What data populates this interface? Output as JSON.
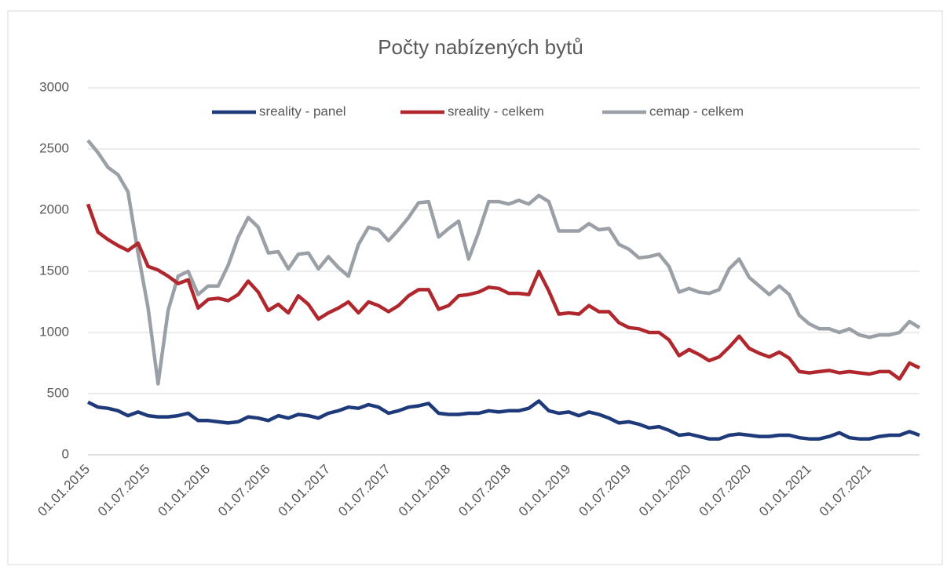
{
  "chart_data": {
    "type": "line",
    "title": "Počty nabízených bytů",
    "categories": [
      "01.01.2015",
      null,
      null,
      null,
      null,
      null,
      "01.07.2015",
      null,
      null,
      null,
      null,
      null,
      "01.01.2016",
      null,
      null,
      null,
      null,
      null,
      "01.07.2016",
      null,
      null,
      null,
      null,
      null,
      "01.01.2017",
      null,
      null,
      null,
      null,
      null,
      "01.07.2017",
      null,
      null,
      null,
      null,
      null,
      "01.01.2018",
      null,
      null,
      null,
      null,
      null,
      "01.07.2018",
      null,
      null,
      null,
      null,
      null,
      "01.01.2019",
      null,
      null,
      null,
      null,
      null,
      "01.07.2019",
      null,
      null,
      null,
      null,
      null,
      "01.01.2020",
      null,
      null,
      null,
      null,
      null,
      "01.07.2020",
      null,
      null,
      null,
      null,
      null,
      "01.01.2021",
      null,
      null,
      null,
      null,
      null,
      "01.07.2021",
      null,
      null,
      null,
      null,
      null
    ],
    "series": [
      {
        "name": "sreality - panel",
        "color": "#1f3a7a",
        "values": [
          430,
          390,
          380,
          360,
          320,
          350,
          320,
          310,
          310,
          320,
          340,
          280,
          280,
          270,
          260,
          270,
          310,
          300,
          280,
          320,
          300,
          330,
          320,
          300,
          340,
          360,
          390,
          380,
          410,
          390,
          340,
          360,
          390,
          400,
          420,
          340,
          330,
          330,
          340,
          340,
          360,
          350,
          360,
          360,
          380,
          440,
          360,
          340,
          350,
          320,
          350,
          330,
          300,
          260,
          270,
          250,
          220,
          230,
          200,
          160,
          170,
          150,
          130,
          130,
          160,
          170,
          160,
          150,
          150,
          160,
          160,
          140,
          130,
          130,
          150,
          180,
          140,
          130,
          130,
          150,
          160,
          160,
          190,
          160
        ]
      },
      {
        "name": "sreality - celkem",
        "color": "#b0282e",
        "values": [
          2050,
          1820,
          1760,
          1710,
          1670,
          1730,
          1540,
          1510,
          1460,
          1400,
          1430,
          1200,
          1270,
          1280,
          1260,
          1310,
          1420,
          1330,
          1180,
          1230,
          1160,
          1300,
          1230,
          1110,
          1160,
          1200,
          1250,
          1160,
          1250,
          1220,
          1170,
          1220,
          1300,
          1350,
          1350,
          1190,
          1220,
          1300,
          1310,
          1330,
          1370,
          1360,
          1320,
          1320,
          1310,
          1500,
          1340,
          1150,
          1160,
          1150,
          1220,
          1170,
          1170,
          1080,
          1040,
          1030,
          1000,
          1000,
          940,
          810,
          860,
          820,
          770,
          800,
          880,
          970,
          870,
          830,
          800,
          840,
          790,
          680,
          670,
          680,
          690,
          670,
          680,
          670,
          660,
          680,
          680,
          620,
          750,
          710
        ]
      },
      {
        "name": "cemap  - celkem",
        "color": "#9aa0a6",
        "values": [
          2570,
          2470,
          2350,
          2290,
          2150,
          1650,
          1200,
          580,
          1180,
          1460,
          1500,
          1310,
          1380,
          1380,
          1550,
          1780,
          1940,
          1860,
          1650,
          1660,
          1520,
          1640,
          1650,
          1520,
          1620,
          1530,
          1460,
          1720,
          1860,
          1840,
          1750,
          1840,
          1940,
          2060,
          2070,
          1780,
          1850,
          1910,
          1600,
          1820,
          2070,
          2070,
          2050,
          2080,
          2050,
          2120,
          2070,
          1830,
          1830,
          1830,
          1890,
          1840,
          1850,
          1720,
          1680,
          1610,
          1620,
          1640,
          1540,
          1330,
          1360,
          1330,
          1320,
          1350,
          1520,
          1600,
          1450,
          1380,
          1310,
          1380,
          1310,
          1140,
          1070,
          1030,
          1030,
          1000,
          1030,
          980,
          960,
          980,
          980,
          1000,
          1090,
          1040
        ]
      }
    ],
    "ylim": [
      0,
      3000
    ],
    "yticks": [
      0,
      500,
      1000,
      1500,
      2000,
      2500,
      3000
    ],
    "grid": true,
    "legend": "top"
  }
}
